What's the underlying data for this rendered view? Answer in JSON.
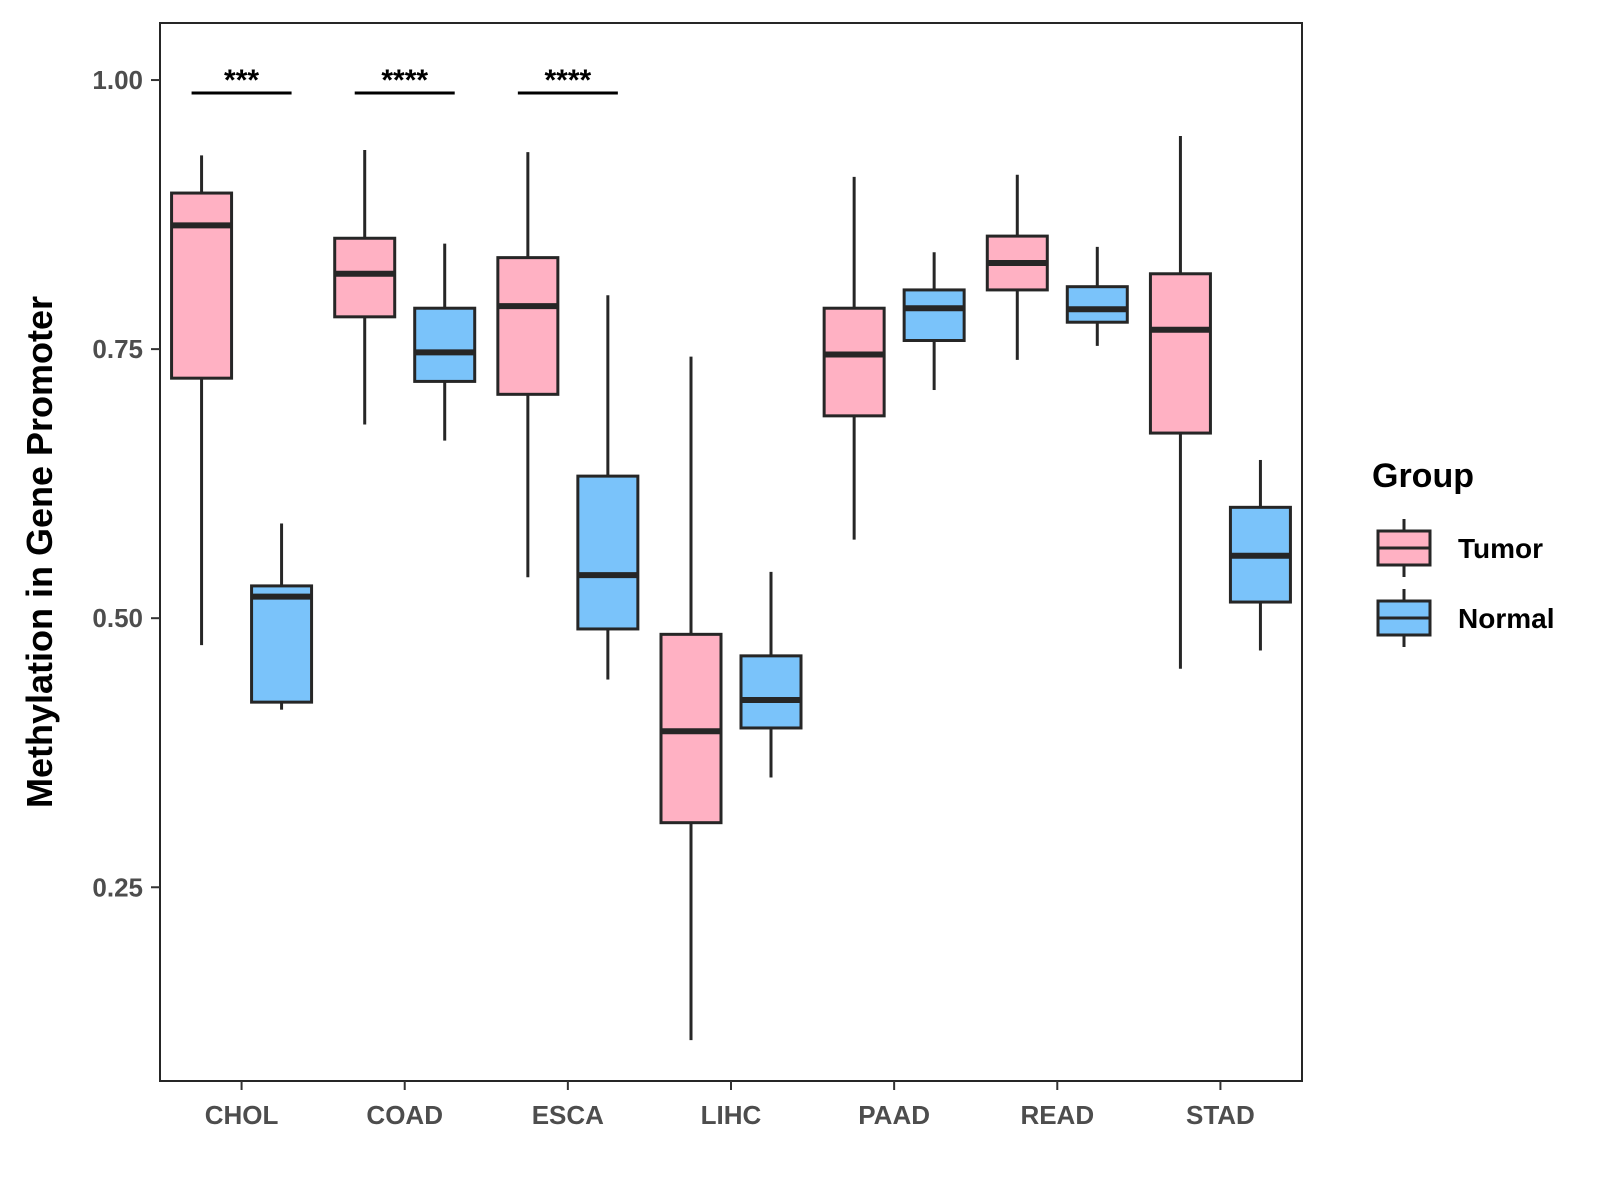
{
  "chart_data": {
    "type": "boxplot",
    "title": "",
    "xlabel": "",
    "ylabel": "Methylation in Gene Promoter",
    "ylim": [
      0.07,
      1.053
    ],
    "yticks": [
      0.25,
      0.5,
      0.75,
      1.0
    ],
    "ytick_labels": [
      "0.25",
      "0.50",
      "0.75",
      "1.00"
    ],
    "categories": [
      "CHOL",
      "COAD",
      "ESCA",
      "LIHC",
      "PAAD",
      "READ",
      "STAD"
    ],
    "legend": {
      "title": "Group",
      "position": "right",
      "entries": [
        "Tumor",
        "Normal"
      ]
    },
    "colors": {
      "Tumor": "#FFB1C3",
      "Normal": "#7AC3FA",
      "outline": "#262626"
    },
    "series": [
      {
        "name": "Tumor",
        "boxes": [
          {
            "category": "CHOL",
            "min": 0.475,
            "q1": 0.723,
            "median": 0.865,
            "q3": 0.895,
            "max": 0.93
          },
          {
            "category": "COAD",
            "min": 0.68,
            "q1": 0.78,
            "median": 0.82,
            "q3": 0.853,
            "max": 0.935
          },
          {
            "category": "ESCA",
            "min": 0.538,
            "q1": 0.708,
            "median": 0.79,
            "q3": 0.835,
            "max": 0.933
          },
          {
            "category": "LIHC",
            "min": 0.108,
            "q1": 0.31,
            "median": 0.395,
            "q3": 0.485,
            "max": 0.743
          },
          {
            "category": "PAAD",
            "min": 0.573,
            "q1": 0.688,
            "median": 0.745,
            "q3": 0.788,
            "max": 0.91
          },
          {
            "category": "READ",
            "min": 0.74,
            "q1": 0.805,
            "median": 0.83,
            "q3": 0.855,
            "max": 0.912
          },
          {
            "category": "STAD",
            "min": 0.453,
            "q1": 0.672,
            "median": 0.768,
            "q3": 0.82,
            "max": 0.948
          }
        ]
      },
      {
        "name": "Normal",
        "boxes": [
          {
            "category": "CHOL",
            "min": 0.415,
            "q1": 0.422,
            "median": 0.52,
            "q3": 0.53,
            "max": 0.588
          },
          {
            "category": "COAD",
            "min": 0.665,
            "q1": 0.72,
            "median": 0.747,
            "q3": 0.788,
            "max": 0.848
          },
          {
            "category": "ESCA",
            "min": 0.443,
            "q1": 0.49,
            "median": 0.54,
            "q3": 0.632,
            "max": 0.8
          },
          {
            "category": "LIHC",
            "min": 0.352,
            "q1": 0.398,
            "median": 0.424,
            "q3": 0.465,
            "max": 0.543
          },
          {
            "category": "PAAD",
            "min": 0.712,
            "q1": 0.758,
            "median": 0.788,
            "q3": 0.805,
            "max": 0.84
          },
          {
            "category": "READ",
            "min": 0.753,
            "q1": 0.775,
            "median": 0.787,
            "q3": 0.808,
            "max": 0.845
          },
          {
            "category": "STAD",
            "min": 0.47,
            "q1": 0.515,
            "median": 0.558,
            "q3": 0.603,
            "max": 0.647
          }
        ]
      }
    ],
    "annotations": [
      {
        "category": "CHOL",
        "label": "***",
        "y": 0.988
      },
      {
        "category": "COAD",
        "label": "****",
        "y": 0.988
      },
      {
        "category": "ESCA",
        "label": "****",
        "y": 0.988
      }
    ]
  }
}
